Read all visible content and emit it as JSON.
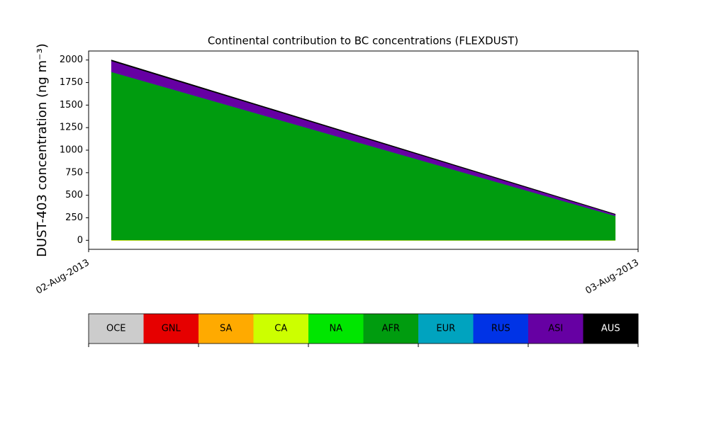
{
  "chart_data": {
    "type": "stacked_area",
    "title": "Continental contribution to BC concentrations (FLEXDUST)",
    "y_label": "DUST-403 concentration (ng m⁻³)",
    "x": [
      1,
      23
    ],
    "xlim": [
      0,
      24
    ],
    "xticks": [
      {
        "value": 0,
        "label": "02-Aug-2013"
      },
      {
        "value": 24,
        "label": "03-Aug-2013"
      }
    ],
    "ylim": [
      -100,
      2100
    ],
    "yticks": [
      0,
      250,
      500,
      750,
      1000,
      1250,
      1500,
      1750,
      2000
    ],
    "legend": "colorbar-below",
    "series": [
      {
        "name": "OCE",
        "color": "#cccccc",
        "values": [
          0,
          0
        ]
      },
      {
        "name": "GNL",
        "color": "#e60000",
        "values": [
          0,
          0
        ]
      },
      {
        "name": "SA",
        "color": "#ffaa00",
        "values": [
          0,
          0
        ]
      },
      {
        "name": "CA",
        "color": "#ccff00",
        "values": [
          5,
          3
        ]
      },
      {
        "name": "NA",
        "color": "#00e600",
        "values": [
          0,
          0
        ]
      },
      {
        "name": "AFR",
        "color": "#009c0f",
        "values": [
          1865,
          270
        ]
      },
      {
        "name": "EUR",
        "color": "#00a3bf",
        "values": [
          0,
          0
        ]
      },
      {
        "name": "RUS",
        "color": "#0033e6",
        "values": [
          0,
          0
        ]
      },
      {
        "name": "ASI",
        "color": "#6600a3",
        "values": [
          120,
          15
        ]
      },
      {
        "name": "AUS",
        "color": "#000000",
        "values": [
          10,
          3
        ]
      }
    ]
  }
}
